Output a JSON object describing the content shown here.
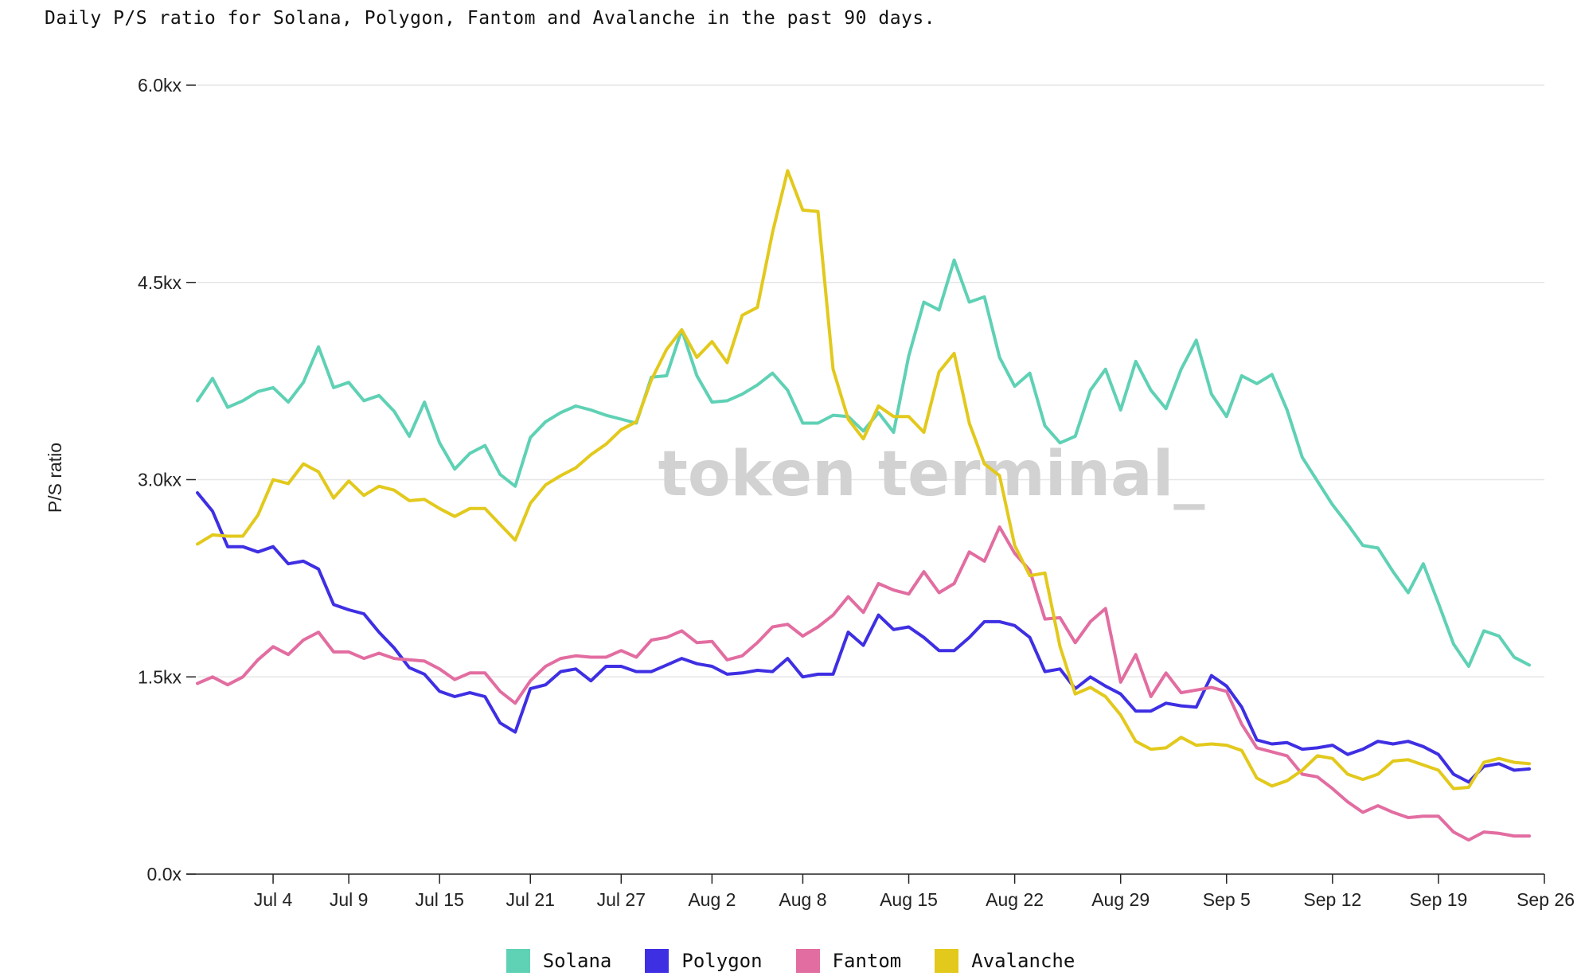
{
  "chart_data": {
    "type": "line",
    "title": "Daily P/S ratio for Solana, Polygon, Fantom and Avalanche in the past 90 days.",
    "ylabel": "P/S ratio",
    "xlabel": "",
    "ylim": [
      0,
      6000
    ],
    "yticks": [
      {
        "value": 0,
        "label": "0.0x"
      },
      {
        "value": 1500,
        "label": "1.5kx"
      },
      {
        "value": 3000,
        "label": "3.0kx"
      },
      {
        "value": 4500,
        "label": "4.5kx"
      },
      {
        "value": 6000,
        "label": "6.0kx"
      }
    ],
    "xdomain": [
      "2022-06-29",
      "2022-09-26"
    ],
    "xticks": [
      {
        "date": "2022-07-04",
        "label": "Jul 4"
      },
      {
        "date": "2022-07-09",
        "label": "Jul 9"
      },
      {
        "date": "2022-07-15",
        "label": "Jul 15"
      },
      {
        "date": "2022-07-21",
        "label": "Jul 21"
      },
      {
        "date": "2022-07-27",
        "label": "Jul 27"
      },
      {
        "date": "2022-08-02",
        "label": "Aug 2"
      },
      {
        "date": "2022-08-08",
        "label": "Aug 8"
      },
      {
        "date": "2022-08-15",
        "label": "Aug 15"
      },
      {
        "date": "2022-08-22",
        "label": "Aug 22"
      },
      {
        "date": "2022-08-29",
        "label": "Aug 29"
      },
      {
        "date": "2022-09-05",
        "label": "Sep 5"
      },
      {
        "date": "2022-09-12",
        "label": "Sep 12"
      },
      {
        "date": "2022-09-19",
        "label": "Sep 19"
      },
      {
        "date": "2022-09-26",
        "label": "Sep 26"
      }
    ],
    "grid": true,
    "legend_position": "bottom",
    "watermark": "token terminal_",
    "series": [
      {
        "name": "Solana",
        "color": "#5fd1b5",
        "start_date": "2022-06-29",
        "values": [
          3600,
          3770,
          3550,
          3600,
          3670,
          3700,
          3590,
          3740,
          4010,
          3700,
          3740,
          3600,
          3640,
          3520,
          3330,
          3590,
          3280,
          3080,
          3200,
          3260,
          3040,
          2950,
          3320,
          3440,
          3510,
          3560,
          3530,
          3490,
          3460,
          3430,
          3780,
          3790,
          4140,
          3790,
          3590,
          3600,
          3650,
          3720,
          3810,
          3680,
          3430,
          3430,
          3490,
          3480,
          3370,
          3510,
          3360,
          3940,
          4350,
          4290,
          4670,
          4350,
          4390,
          3930,
          3710,
          3810,
          3410,
          3280,
          3330,
          3680,
          3840,
          3530,
          3900,
          3680,
          3540,
          3840,
          4060,
          3650,
          3480,
          3790,
          3730,
          3800,
          3530,
          3170,
          2990,
          2810,
          2660,
          2500,
          2480,
          2300,
          2140,
          2360,
          2060,
          1750,
          1580,
          1850,
          1810,
          1650,
          1590
        ]
      },
      {
        "name": "Polygon",
        "color": "#3e2fe3",
        "start_date": "2022-06-29",
        "values": [
          2900,
          2760,
          2490,
          2490,
          2450,
          2490,
          2360,
          2380,
          2320,
          2050,
          2010,
          1980,
          1840,
          1720,
          1570,
          1520,
          1390,
          1350,
          1380,
          1350,
          1150,
          1080,
          1410,
          1440,
          1540,
          1560,
          1470,
          1580,
          1580,
          1540,
          1540,
          1590,
          1640,
          1600,
          1580,
          1520,
          1530,
          1550,
          1540,
          1640,
          1500,
          1520,
          1520,
          1840,
          1740,
          1970,
          1860,
          1880,
          1800,
          1700,
          1700,
          1800,
          1920,
          1920,
          1890,
          1800,
          1540,
          1560,
          1410,
          1500,
          1430,
          1370,
          1240,
          1240,
          1300,
          1280,
          1270,
          1510,
          1430,
          1270,
          1020,
          990,
          1000,
          950,
          960,
          980,
          910,
          950,
          1010,
          990,
          1010,
          970,
          910,
          760,
          700,
          820,
          840,
          790,
          800
        ]
      },
      {
        "name": "Fantom",
        "color": "#e26da1",
        "start_date": "2022-06-29",
        "values": [
          1450,
          1500,
          1440,
          1500,
          1630,
          1730,
          1670,
          1780,
          1840,
          1690,
          1690,
          1640,
          1680,
          1640,
          1630,
          1620,
          1560,
          1480,
          1530,
          1530,
          1390,
          1300,
          1470,
          1580,
          1640,
          1660,
          1650,
          1650,
          1700,
          1650,
          1780,
          1800,
          1850,
          1760,
          1770,
          1630,
          1660,
          1760,
          1880,
          1900,
          1810,
          1880,
          1970,
          2110,
          1990,
          2210,
          2160,
          2130,
          2300,
          2140,
          2210,
          2450,
          2380,
          2640,
          2440,
          2310,
          1940,
          1950,
          1760,
          1920,
          2020,
          1460,
          1670,
          1350,
          1530,
          1380,
          1400,
          1420,
          1390,
          1140,
          960,
          930,
          900,
          760,
          740,
          650,
          550,
          470,
          520,
          470,
          430,
          440,
          440,
          320,
          260,
          320,
          310,
          290,
          290
        ]
      },
      {
        "name": "Avalanche",
        "color": "#e2c91c",
        "start_date": "2022-06-29",
        "values": [
          2510,
          2580,
          2570,
          2570,
          2730,
          3000,
          2970,
          3120,
          3060,
          2860,
          2990,
          2880,
          2950,
          2920,
          2840,
          2850,
          2780,
          2720,
          2780,
          2780,
          2660,
          2540,
          2820,
          2960,
          3030,
          3090,
          3190,
          3270,
          3380,
          3440,
          3760,
          3990,
          4140,
          3930,
          4050,
          3890,
          4250,
          4310,
          4880,
          5350,
          5050,
          5040,
          3840,
          3460,
          3310,
          3560,
          3480,
          3480,
          3360,
          3820,
          3960,
          3430,
          3120,
          3030,
          2500,
          2270,
          2290,
          1730,
          1370,
          1420,
          1350,
          1210,
          1010,
          950,
          960,
          1040,
          980,
          990,
          980,
          940,
          730,
          670,
          710,
          790,
          900,
          880,
          760,
          720,
          760,
          860,
          870,
          830,
          790,
          650,
          660,
          850,
          880,
          850,
          840
        ]
      }
    ]
  }
}
